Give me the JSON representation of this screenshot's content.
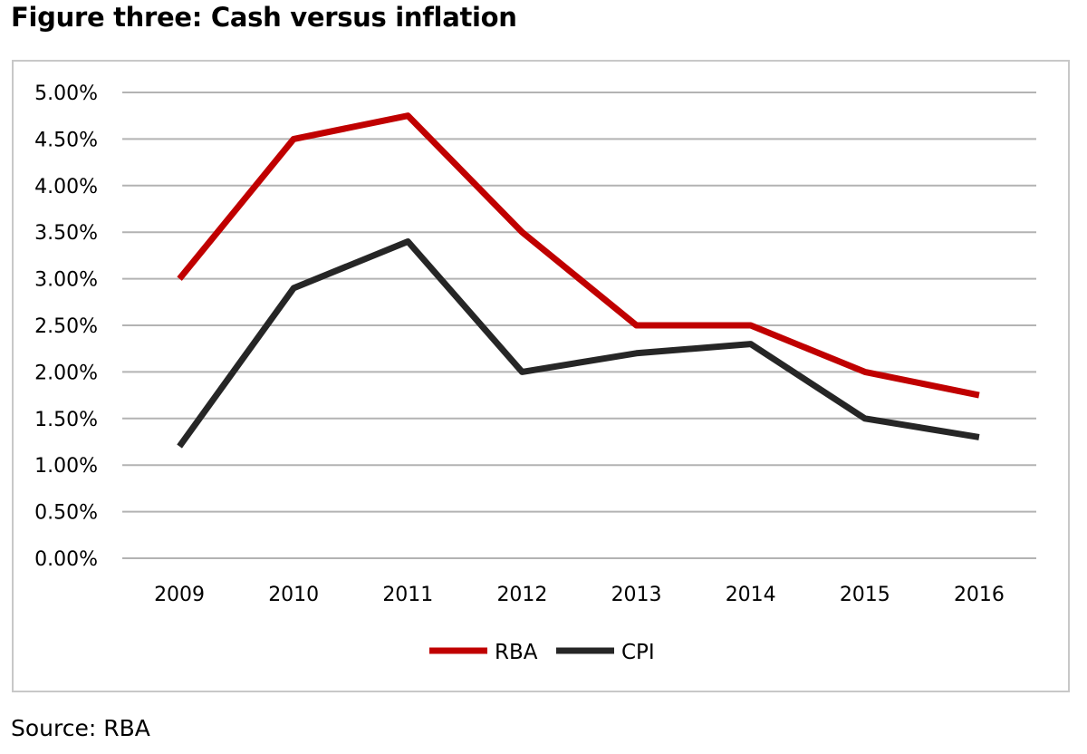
{
  "page": {
    "title": "Figure three: Cash versus inflation",
    "source": "Source: RBA"
  },
  "chart_data": {
    "type": "line",
    "title": "",
    "xlabel": "",
    "ylabel": "",
    "x": [
      "2009",
      "2010",
      "2011",
      "2012",
      "2013",
      "2014",
      "2015",
      "2016"
    ],
    "yticks": [
      "0.00%",
      "0.50%",
      "1.00%",
      "1.50%",
      "2.00%",
      "2.50%",
      "3.00%",
      "3.50%",
      "4.00%",
      "4.50%",
      "5.00%"
    ],
    "ylim": [
      0,
      5
    ],
    "grid": true,
    "legend_position": "bottom-center",
    "series": [
      {
        "name": "RBA",
        "color": "#c00000",
        "values": [
          3.0,
          4.5,
          4.75,
          3.5,
          2.5,
          2.5,
          2.0,
          1.75
        ]
      },
      {
        "name": "CPI",
        "color": "#262626",
        "values": [
          1.2,
          2.9,
          3.4,
          2.0,
          2.2,
          2.3,
          1.5,
          1.3
        ]
      }
    ]
  }
}
